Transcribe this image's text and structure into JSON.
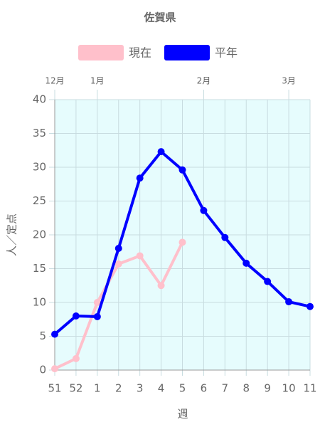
{
  "chart_data": {
    "type": "line",
    "title": "佐賀県",
    "categories": [
      "51",
      "52",
      "1",
      "2",
      "3",
      "4",
      "5",
      "6",
      "7",
      "8",
      "9",
      "10",
      "11"
    ],
    "top_labels": [
      "12月",
      null,
      "1月",
      null,
      null,
      null,
      null,
      "2月",
      null,
      null,
      null,
      "3月",
      null
    ],
    "series": [
      {
        "name": "現在",
        "color": "#ffc0cb",
        "values": [
          0.2,
          1.7,
          10.0,
          15.7,
          16.9,
          12.5,
          18.9,
          null,
          null,
          null,
          null,
          null,
          null
        ]
      },
      {
        "name": "平年",
        "color": "#0000ff",
        "values": [
          5.3,
          8.0,
          7.9,
          18.0,
          28.4,
          32.3,
          29.6,
          23.6,
          19.6,
          15.8,
          13.1,
          10.1,
          9.4
        ]
      }
    ],
    "ylim": [
      0,
      40
    ],
    "yticks": [
      0,
      5,
      10,
      15,
      20,
      25,
      30,
      35,
      40
    ],
    "y_label": "人／定点",
    "x_label": "週",
    "grid": true,
    "background": "#e6fcfd"
  }
}
